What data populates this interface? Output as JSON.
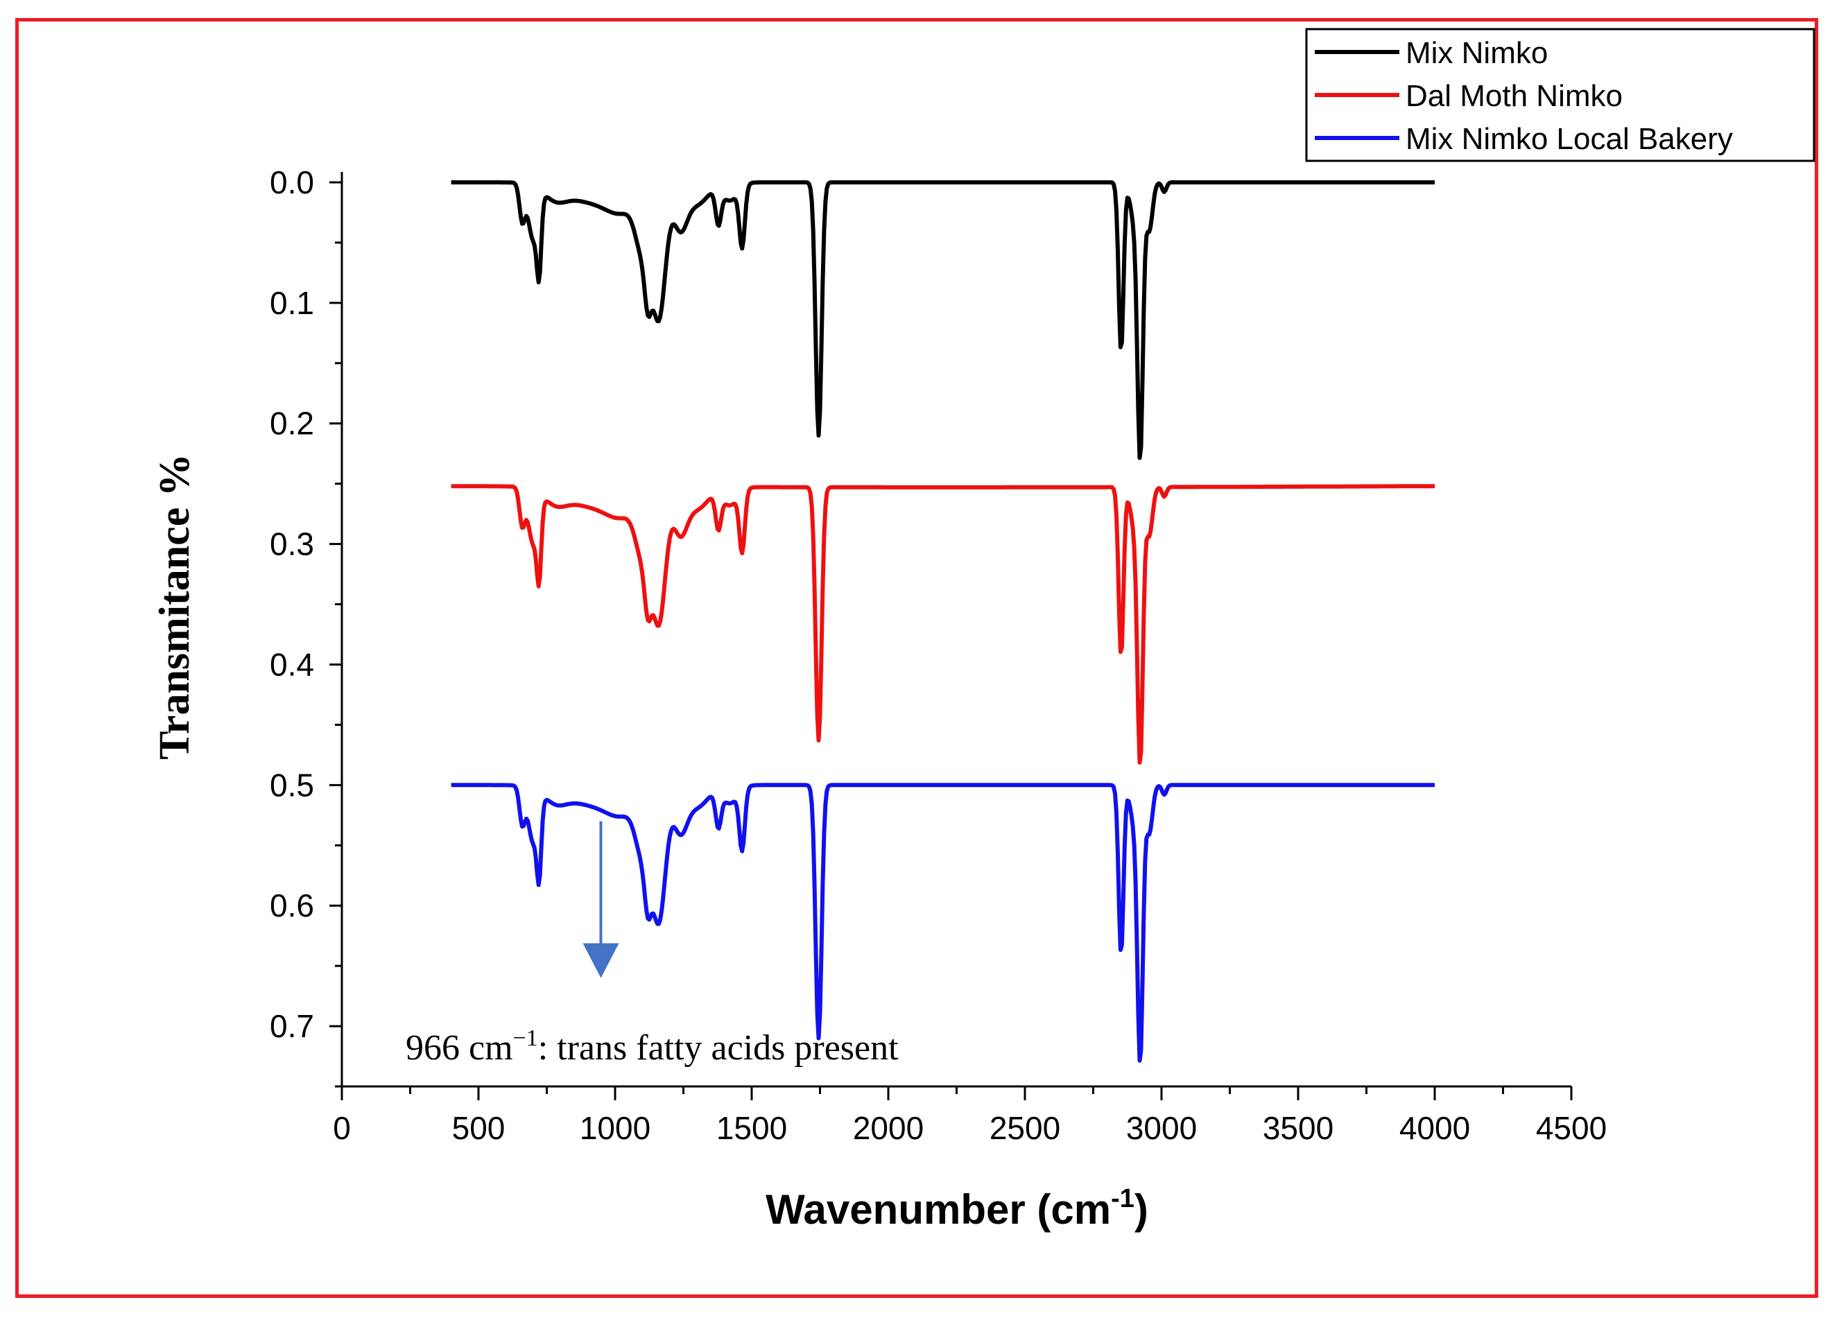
{
  "chart_data": {
    "type": "line",
    "title": "",
    "xlabel": "Wavenumber (cm",
    "xlabel_sup": "-1",
    "xlabel_close": ")",
    "ylabel": "Transmitance %",
    "xlim": [
      0,
      4500
    ],
    "ylim": [
      0.75,
      0.0
    ],
    "y_inverted": true,
    "x_ticks": [
      0,
      500,
      1000,
      1500,
      2000,
      2500,
      3000,
      3500,
      4000,
      4500
    ],
    "x_tick_labels": [
      "0",
      "500",
      "1000",
      "1500",
      "2000",
      "2500",
      "3000",
      "3500",
      "4000",
      "4500"
    ],
    "y_ticks": [
      0.0,
      0.1,
      0.2,
      0.3,
      0.4,
      0.5,
      0.6,
      0.7
    ],
    "y_tick_labels": [
      "0.0",
      "0.1",
      "0.2",
      "0.3",
      "0.4",
      "0.5",
      "0.6",
      "0.7"
    ],
    "legend_position": "top-right",
    "grid": false,
    "series": [
      {
        "name": "Mix Nimko",
        "color": "#000000",
        "baseline": 0.0,
        "trend": 0.0
      },
      {
        "name": "Dal Moth Nimko",
        "color": "#ee1111",
        "baseline": 0.252,
        "trend": 0.001
      },
      {
        "name": "Mix Nimko Local Bakery",
        "color": "#1111ee",
        "baseline": 0.5,
        "trend": 0.0
      }
    ],
    "spectrum": {
      "x_start": 400,
      "x_end": 4000,
      "step": 5,
      "peaks": [
        [
          660,
          0.03,
          10
        ],
        [
          700,
          0.045,
          18
        ],
        [
          722,
          0.055,
          8
        ],
        [
          780,
          0.01,
          40
        ],
        [
          900,
          0.015,
          90
        ],
        [
          1030,
          0.02,
          60
        ],
        [
          1100,
          0.045,
          25
        ],
        [
          1120,
          0.04,
          12
        ],
        [
          1160,
          0.11,
          25
        ],
        [
          1238,
          0.035,
          25
        ],
        [
          1300,
          0.018,
          40
        ],
        [
          1378,
          0.028,
          10
        ],
        [
          1420,
          0.015,
          30
        ],
        [
          1465,
          0.05,
          10
        ],
        [
          1745,
          0.21,
          11
        ],
        [
          2852,
          0.14,
          9
        ],
        [
          2900,
          0.03,
          15
        ],
        [
          2922,
          0.22,
          10
        ],
        [
          2955,
          0.04,
          12
        ],
        [
          3010,
          0.008,
          8
        ]
      ]
    },
    "annotation": {
      "text": "966 cm",
      "sup": "−1",
      "rest": ": trans fatty acids present",
      "arrow_x": 948,
      "arrow_y_from": 0.53,
      "arrow_y_to": 0.66,
      "arrow_color": "#4472c4"
    }
  }
}
